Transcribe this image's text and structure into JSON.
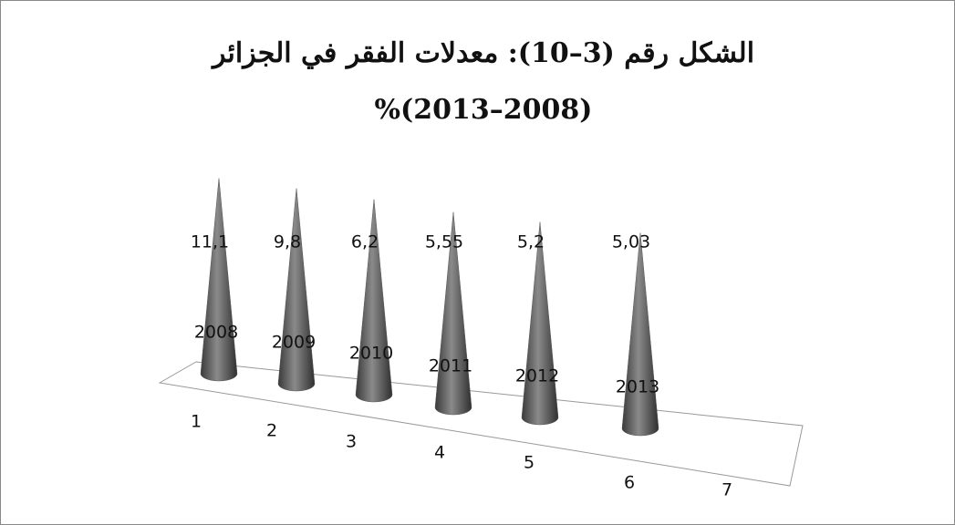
{
  "chart_data": {
    "type": "cone",
    "title": "الشكل رقم (3–10): معدلات الفقر في الجزائر",
    "subtitle": "(2008–2013)%",
    "categories": [
      "1",
      "2",
      "3",
      "4",
      "5",
      "6",
      "7"
    ],
    "stacked": true,
    "series": [
      {
        "color": "#5a5a5a",
        "values": [
          2008,
          2009,
          2010,
          2011,
          2012,
          2013,
          null
        ]
      },
      {
        "color": "#c4c4c4",
        "values": [
          11.1,
          9.8,
          6.2,
          5.55,
          5.2,
          5.03,
          null
        ],
        "value_labels": [
          "11,1",
          "9,8",
          "6,2",
          "5,55",
          "5,2",
          "5,03",
          null
        ]
      }
    ]
  }
}
